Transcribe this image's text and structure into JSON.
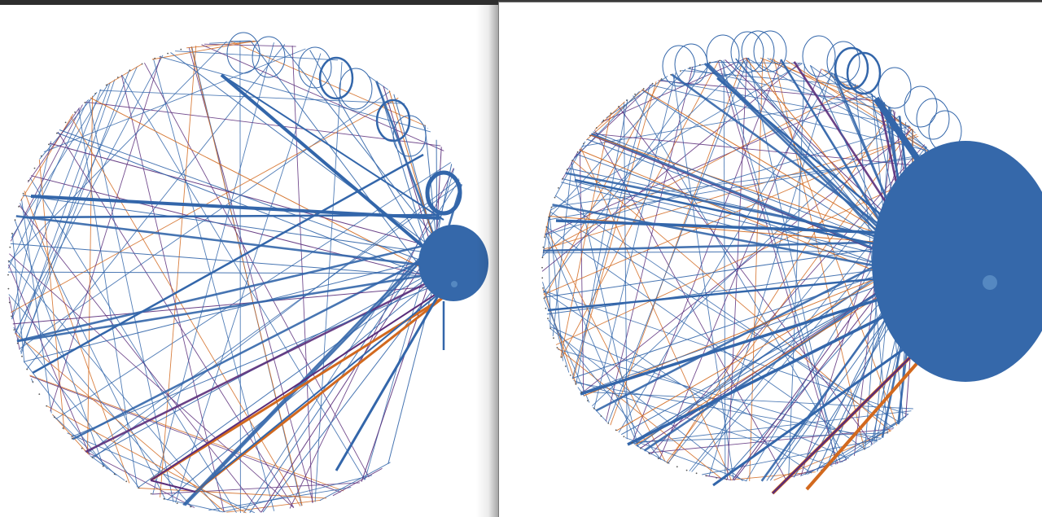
{
  "windows": [
    {
      "id": "left",
      "description_name": "chord-graph-view-left",
      "center": null
    },
    {
      "id": "right",
      "description_name": "chord-graph-view-right",
      "center": null
    }
  ],
  "colors": {
    "edge_blue": "#3366aa",
    "edge_orange": "#d2691e",
    "edge_purple": "#5a2d7a",
    "node_blue": "#3568aa",
    "node_highlight": "#6a9fd0",
    "titlebar": "#2e2e2e"
  },
  "icons": {
    "self_loop": "loop-icon",
    "hub_node": "hub-node"
  }
}
